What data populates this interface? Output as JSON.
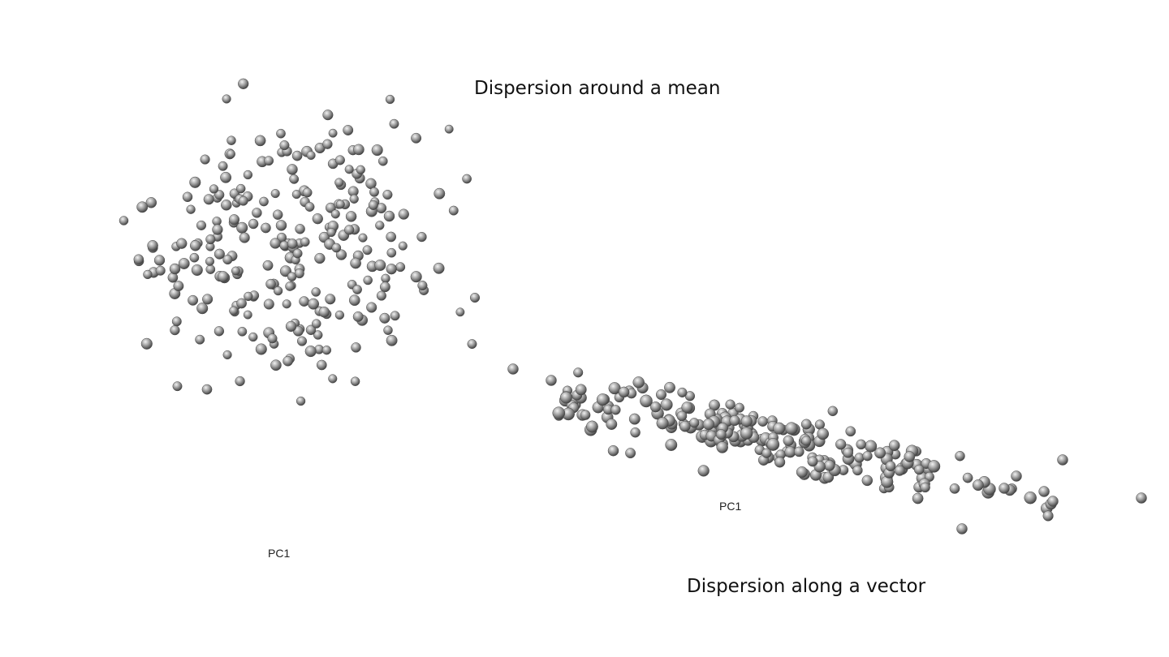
{
  "figure": {
    "caption_top": "Dispersion around a mean",
    "caption_bottom": "Dispersion along a vector"
  },
  "panels": [
    {
      "axis_label": "PC1",
      "pattern": "isotropic cluster around a mean",
      "point_count": 260
    },
    {
      "axis_label": "PC1",
      "pattern": "elongated cluster along a single vector",
      "point_count": 220
    }
  ],
  "colors": {
    "background": "#ffffff",
    "sphere_highlight": "#f2f2f2",
    "sphere_mid": "#9a9a9a",
    "sphere_shadow": "#3c3c3c",
    "text": "#111111"
  }
}
